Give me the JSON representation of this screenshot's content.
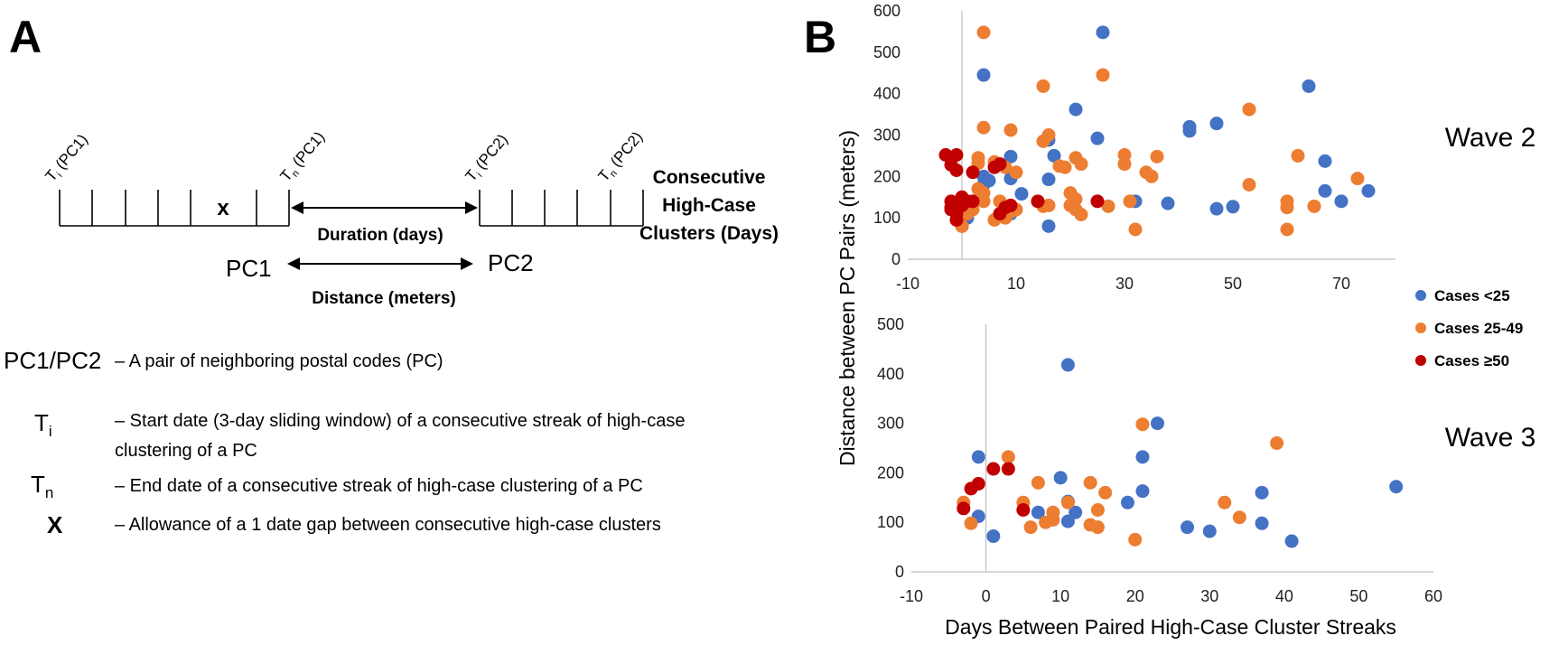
{
  "panel_a": {
    "label": "A",
    "ti_pc1": {
      "base": "T",
      "sub": "i",
      "rest": " (PC1)"
    },
    "tn_pc1": {
      "base": "T",
      "sub": "n",
      "rest": " (PC1)"
    },
    "ti_pc2": {
      "base": "T",
      "sub": "i",
      "rest": " (PC2)"
    },
    "tn_pc2": {
      "base": "T",
      "sub": "n",
      "rest": " (PC2)"
    },
    "x_mark": "x",
    "duration_label": "Duration (days)",
    "distance_label": "Distance (meters)",
    "pc1": "PC1",
    "pc2": "PC2",
    "consecutive_label": [
      "Consecutive",
      "High-Case",
      "Clusters (Days)"
    ],
    "legend": {
      "pc_term": "PC1/PC2",
      "pc_desc": "– A pair of neighboring postal codes (PC)",
      "ti_base": "T",
      "ti_sub": "i",
      "ti_desc": [
        "– Start date (3-day sliding window) of a consecutive streak of high-case",
        "clustering of a PC"
      ],
      "tn_base": "T",
      "tn_sub": "n",
      "tn_desc": "– End date of a consecutive streak of high-case clustering of a PC",
      "x_term": "X",
      "x_desc": "– Allowance of a 1 date gap between consecutive high-case clusters"
    }
  },
  "panel_b": {
    "label": "B",
    "ylabel": "Distance between PC Pairs (meters)",
    "xlabel": "Days Between Paired High-Case Cluster Streaks",
    "legend": [
      {
        "name": "Cases <25",
        "color": "#4472c4"
      },
      {
        "name": "Cases 25-49",
        "color": "#ed7d31"
      },
      {
        "name": "Cases ≥50",
        "color": "#c00000"
      }
    ]
  },
  "chart_data": [
    {
      "type": "scatter",
      "title": "Wave 2",
      "xlabel": "Days Between Paired High-Case Cluster Streaks",
      "ylabel": "Distance between PC Pairs (meters)",
      "xlim": [
        -10,
        80
      ],
      "ylim": [
        0,
        600
      ],
      "xticks": [
        -10,
        10,
        30,
        50,
        70
      ],
      "yticks": [
        0,
        100,
        200,
        300,
        400,
        500,
        600
      ],
      "series": [
        {
          "name": "Cases <25",
          "color": "#4472c4",
          "points": [
            [
              4,
              445
            ],
            [
              26,
              548
            ],
            [
              21,
              362
            ],
            [
              25,
              292
            ],
            [
              16,
              288
            ],
            [
              17,
              250
            ],
            [
              9,
              248
            ],
            [
              16,
              193
            ],
            [
              4,
              200
            ],
            [
              5,
              190
            ],
            [
              9,
              195
            ],
            [
              11,
              158
            ],
            [
              1,
              100
            ],
            [
              0,
              80
            ],
            [
              9,
              110
            ],
            [
              16,
              80
            ],
            [
              2,
              140
            ],
            [
              4,
              180
            ],
            [
              32,
              140
            ],
            [
              38,
              135
            ],
            [
              42,
              320
            ],
            [
              42,
              310
            ],
            [
              47,
              328
            ],
            [
              47,
              122
            ],
            [
              50,
              127
            ],
            [
              64,
              418
            ],
            [
              67,
              237
            ],
            [
              67,
              165
            ],
            [
              70,
              140
            ],
            [
              75,
              165
            ]
          ]
        },
        {
          "name": "Cases 25-49",
          "color": "#ed7d31",
          "points": [
            [
              4,
              548
            ],
            [
              26,
              445
            ],
            [
              15,
              418
            ],
            [
              4,
              318
            ],
            [
              9,
              312
            ],
            [
              16,
              300
            ],
            [
              15,
              285
            ],
            [
              30,
              252
            ],
            [
              30,
              230
            ],
            [
              36,
              248
            ],
            [
              34,
              210
            ],
            [
              35,
              200
            ],
            [
              21,
              245
            ],
            [
              22,
              230
            ],
            [
              19,
              222
            ],
            [
              18,
              225
            ],
            [
              20,
              160
            ],
            [
              21,
              145
            ],
            [
              21,
              120
            ],
            [
              22,
              108
            ],
            [
              20,
              130
            ],
            [
              15,
              128
            ],
            [
              16,
              130
            ],
            [
              27,
              128
            ],
            [
              31,
              140
            ],
            [
              32,
              72
            ],
            [
              10,
              210
            ],
            [
              8,
              222
            ],
            [
              6,
              235
            ],
            [
              3,
              245
            ],
            [
              3,
              232
            ],
            [
              3,
              170
            ],
            [
              4,
              160
            ],
            [
              2,
              120
            ],
            [
              1,
              110
            ],
            [
              0,
              80
            ],
            [
              4,
              140
            ],
            [
              7,
              140
            ],
            [
              8,
              100
            ],
            [
              6,
              95
            ],
            [
              9,
              115
            ],
            [
              10,
              120
            ],
            [
              53,
              362
            ],
            [
              53,
              180
            ],
            [
              62,
              250
            ],
            [
              60,
              140
            ],
            [
              60,
              125
            ],
            [
              60,
              72
            ],
            [
              65,
              128
            ],
            [
              73,
              195
            ]
          ]
        },
        {
          "name": "Cases ≥50",
          "color": "#c00000",
          "points": [
            [
              -3,
              252
            ],
            [
              -1,
              252
            ],
            [
              -2,
              228
            ],
            [
              -1,
              215
            ],
            [
              2,
              210
            ],
            [
              6,
              222
            ],
            [
              7,
              230
            ],
            [
              -2,
              140
            ],
            [
              -2,
              125
            ],
            [
              -1,
              110
            ],
            [
              -1,
              95
            ],
            [
              0,
              130
            ],
            [
              0,
              150
            ],
            [
              1,
              140
            ],
            [
              -2,
              120
            ],
            [
              2,
              140
            ],
            [
              7,
              110
            ],
            [
              9,
              130
            ],
            [
              8,
              125
            ],
            [
              14,
              140
            ],
            [
              25,
              140
            ]
          ]
        }
      ]
    },
    {
      "type": "scatter",
      "title": "Wave 3",
      "xlabel": "Days Between Paired High-Case Cluster Streaks",
      "ylabel": "Distance between PC Pairs (meters)",
      "xlim": [
        -10,
        60
      ],
      "ylim": [
        0,
        500
      ],
      "xticks": [
        -10,
        0,
        10,
        20,
        30,
        40,
        50,
        60
      ],
      "yticks": [
        0,
        100,
        200,
        300,
        400,
        500
      ],
      "series": [
        {
          "name": "Cases <25",
          "color": "#4472c4",
          "points": [
            [
              11,
              418
            ],
            [
              23,
              300
            ],
            [
              21,
              232
            ],
            [
              -1,
              232
            ],
            [
              10,
              190
            ],
            [
              21,
              163
            ],
            [
              11,
              142
            ],
            [
              12,
              120
            ],
            [
              11,
              102
            ],
            [
              7,
              120
            ],
            [
              19,
              140
            ],
            [
              -1,
              112
            ],
            [
              1,
              72
            ],
            [
              27,
              90
            ],
            [
              30,
              82
            ],
            [
              37,
              160
            ],
            [
              37,
              98
            ],
            [
              41,
              62
            ],
            [
              55,
              172
            ]
          ]
        },
        {
          "name": "Cases 25-49",
          "color": "#ed7d31",
          "points": [
            [
              21,
              298
            ],
            [
              39,
              260
            ],
            [
              3,
              232
            ],
            [
              7,
              180
            ],
            [
              14,
              180
            ],
            [
              16,
              160
            ],
            [
              15,
              125
            ],
            [
              15,
              90
            ],
            [
              14,
              95
            ],
            [
              9,
              120
            ],
            [
              9,
              105
            ],
            [
              8,
              100
            ],
            [
              6,
              90
            ],
            [
              5,
              140
            ],
            [
              11,
              140
            ],
            [
              -2,
              98
            ],
            [
              -3,
              140
            ],
            [
              20,
              65
            ],
            [
              32,
              140
            ],
            [
              34,
              110
            ]
          ]
        },
        {
          "name": "Cases ≥50",
          "color": "#c00000",
          "points": [
            [
              -2,
              168
            ],
            [
              -1,
              178
            ],
            [
              1,
              208
            ],
            [
              3,
              208
            ],
            [
              -3,
              128
            ],
            [
              5,
              125
            ]
          ]
        }
      ]
    }
  ]
}
